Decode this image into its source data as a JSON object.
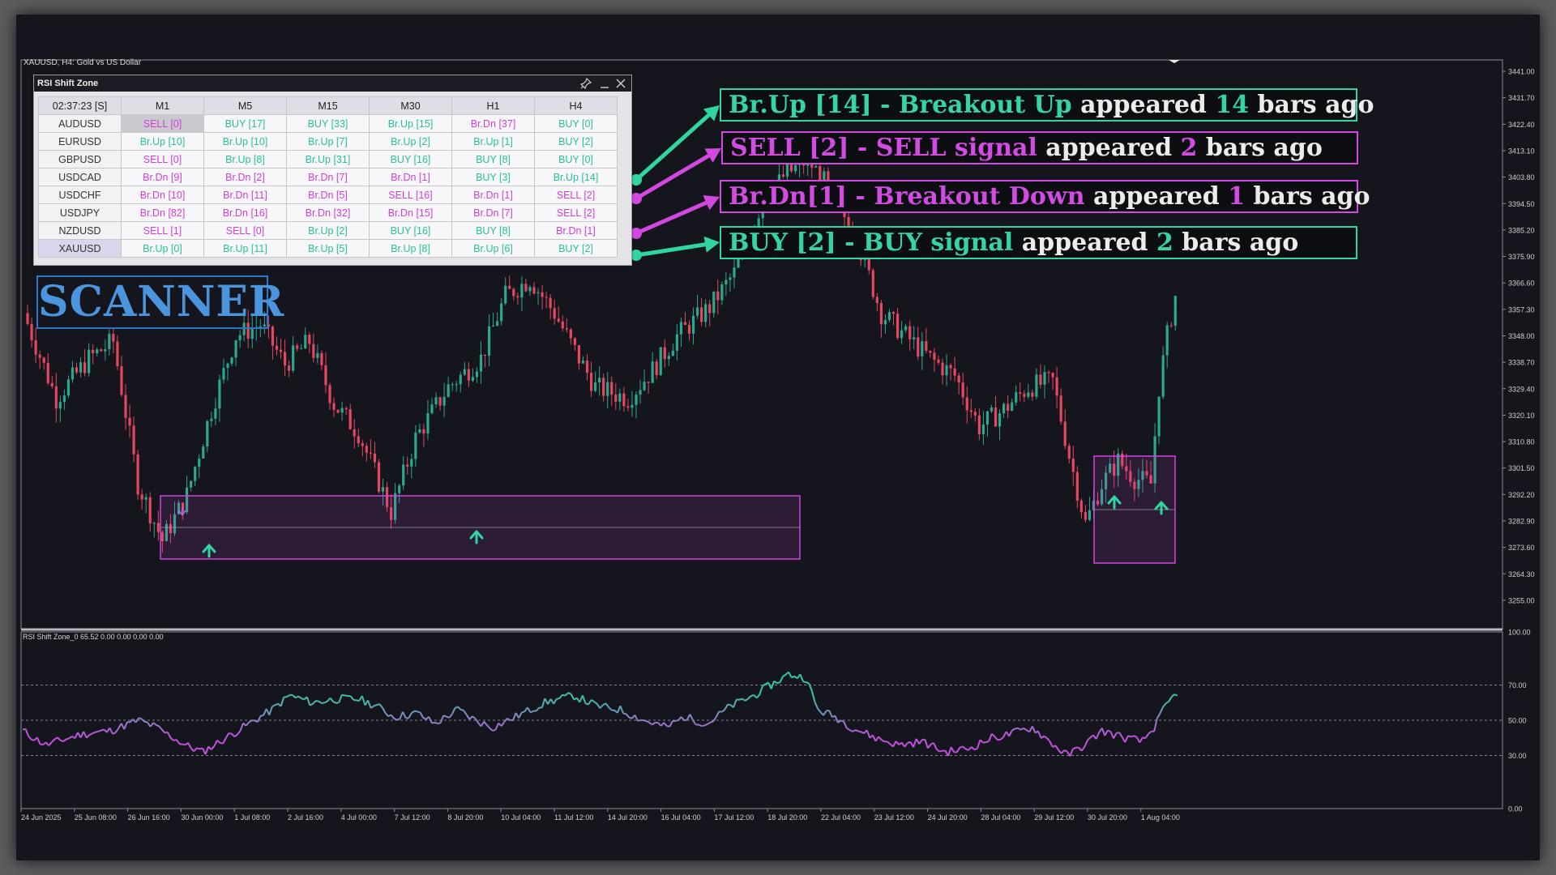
{
  "chart": {
    "symbol_title": "XAUUSD, H4:  Gold vs US Dollar",
    "price_labels": [
      "3441.00",
      "3431.70",
      "3422.40",
      "3413.10",
      "3403.80",
      "3394.50",
      "3385.20",
      "3375.90",
      "3366.60",
      "3357.30",
      "3348.00",
      "3338.70",
      "3329.40",
      "3320.10",
      "3310.80",
      "3301.50",
      "3292.20",
      "3282.90",
      "3273.60",
      "3264.30",
      "3255.00"
    ],
    "time_labels": [
      "24 Jun 2025",
      "25 Jun 08:00",
      "26 Jun 16:00",
      "30 Jun 00:00",
      "1 Jul 08:00",
      "2 Jul 16:00",
      "4 Jul 00:00",
      "7 Jul 12:00",
      "8 Jul 20:00",
      "10 Jul 04:00",
      "11 Jul 12:00",
      "14 Jul 20:00",
      "16 Jul 04:00",
      "17 Jul 12:00",
      "18 Jul 20:00",
      "22 Jul 04:00",
      "23 Jul 12:00",
      "24 Jul 20:00",
      "28 Jul 04:00",
      "29 Jul 12:00",
      "30 Jul 20:00",
      "1 Aug 04:00"
    ],
    "bull_color": "#2ba88e",
    "bear_color": "#e5475f",
    "zone_color": "#d043dc"
  },
  "indicator": {
    "title": "RSI Shift Zone_0 65.52 0.00 0.00 0.00 0.00",
    "levels": [
      "100.00",
      "70.00",
      "50.00",
      "30.00",
      "0.00"
    ]
  },
  "scanner_panel": {
    "title": "RSI Shift Zone",
    "pin_icon": "pin-icon",
    "minimize_icon": "minimize-icon",
    "close_icon": "close-icon",
    "time": "02:37:23 [S]",
    "timeframes": [
      "M1",
      "M5",
      "M15",
      "M30",
      "H1",
      "H4"
    ],
    "rows": [
      {
        "symbol": "AUDUSD",
        "cells": [
          [
            "SELL [0]",
            "m"
          ],
          [
            "BUY [17]",
            "g"
          ],
          [
            "BUY [33]",
            "g"
          ],
          [
            "Br.Up [15]",
            "g"
          ],
          [
            "Br.Dn [37]",
            "m"
          ],
          [
            "BUY [0]",
            "g"
          ]
        ]
      },
      {
        "symbol": "EURUSD",
        "cells": [
          [
            "Br.Up [10]",
            "g"
          ],
          [
            "Br.Up [10]",
            "g"
          ],
          [
            "Br.Up [7]",
            "g"
          ],
          [
            "Br.Up [2]",
            "g"
          ],
          [
            "Br.Up [1]",
            "g"
          ],
          [
            "BUY [2]",
            "g"
          ]
        ]
      },
      {
        "symbol": "GBPUSD",
        "cells": [
          [
            "SELL [0]",
            "m"
          ],
          [
            "Br.Up [8]",
            "g"
          ],
          [
            "Br.Up [31]",
            "g"
          ],
          [
            "BUY [16]",
            "g"
          ],
          [
            "BUY [8]",
            "g"
          ],
          [
            "BUY [0]",
            "g"
          ]
        ]
      },
      {
        "symbol": "USDCAD",
        "cells": [
          [
            "Br.Dn [9]",
            "m"
          ],
          [
            "Br.Dn [2]",
            "m"
          ],
          [
            "Br.Dn [7]",
            "m"
          ],
          [
            "Br.Dn [1]",
            "m"
          ],
          [
            "BUY [3]",
            "g"
          ],
          [
            "Br.Up [14]",
            "g"
          ]
        ]
      },
      {
        "symbol": "USDCHF",
        "cells": [
          [
            "Br.Dn [10]",
            "m"
          ],
          [
            "Br.Dn [11]",
            "m"
          ],
          [
            "Br.Dn [5]",
            "m"
          ],
          [
            "SELL [16]",
            "m"
          ],
          [
            "Br.Dn [1]",
            "m"
          ],
          [
            "SELL [2]",
            "m"
          ]
        ]
      },
      {
        "symbol": "USDJPY",
        "cells": [
          [
            "Br.Dn [82]",
            "m"
          ],
          [
            "Br.Dn [16]",
            "m"
          ],
          [
            "Br.Dn [32]",
            "m"
          ],
          [
            "Br.Dn [15]",
            "m"
          ],
          [
            "Br.Dn [7]",
            "m"
          ],
          [
            "SELL [2]",
            "m"
          ]
        ]
      },
      {
        "symbol": "NZDUSD",
        "cells": [
          [
            "SELL [1]",
            "m"
          ],
          [
            "SELL [0]",
            "m"
          ],
          [
            "Br.Up [2]",
            "g"
          ],
          [
            "BUY [16]",
            "g"
          ],
          [
            "BUY [8]",
            "g"
          ],
          [
            "Br.Dn [1]",
            "m"
          ]
        ]
      },
      {
        "symbol": "XAUUSD",
        "cells": [
          [
            "Br.Up [0]",
            "g"
          ],
          [
            "Br.Up [11]",
            "g"
          ],
          [
            "Br.Up [5]",
            "g"
          ],
          [
            "Br.Up [8]",
            "g"
          ],
          [
            "Br.Up [6]",
            "g"
          ],
          [
            "BUY [2]",
            "g"
          ]
        ]
      }
    ]
  },
  "annotations": [
    {
      "colored": "Br.Up [14] - Breakout Up",
      "w1": " appeared ",
      "num": "14",
      "w2": " bars ago",
      "color": "g"
    },
    {
      "colored": "SELL [2] - SELL signal",
      "w1": " appeared ",
      "num": "2",
      "w2": " bars ago",
      "color": "m"
    },
    {
      "colored": "Br.Dn[1] - Breakout Down",
      "w1": " appeared ",
      "num": "1",
      "w2": " bars ago",
      "color": "m"
    },
    {
      "colored": "BUY [2] - BUY signal",
      "w1": " appeared ",
      "num": "2",
      "w2": " bars ago",
      "color": "g"
    }
  ],
  "scanner_label": "SCANNER",
  "colors": {
    "accent_green": "#2fd6a4",
    "accent_magenta": "#d348e0",
    "scanner_blue": "#4a95dd"
  }
}
